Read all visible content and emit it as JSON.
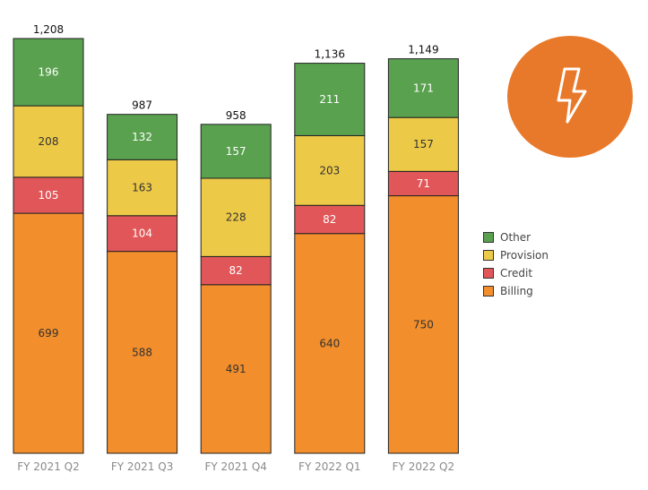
{
  "chart_data": {
    "type": "bar",
    "stacked": true,
    "categories": [
      "FY 2021 Q2",
      "FY 2021 Q3",
      "FY 2021 Q4",
      "FY 2022 Q1",
      "FY 2022 Q2"
    ],
    "series": [
      {
        "name": "Billing",
        "values": [
          699,
          588,
          491,
          640,
          750
        ],
        "color": "#f28e2b",
        "label_color": "#333333"
      },
      {
        "name": "Credit",
        "values": [
          105,
          104,
          82,
          82,
          71
        ],
        "color": "#e15759",
        "label_color": "#ffffff"
      },
      {
        "name": "Provision",
        "values": [
          208,
          163,
          228,
          203,
          157
        ],
        "color": "#edc948",
        "label_color": "#333333"
      },
      {
        "name": "Other",
        "values": [
          196,
          132,
          157,
          211,
          171
        ],
        "color": "#59a14f",
        "label_color": "#ffffff"
      }
    ],
    "totals": [
      "1,208",
      "987",
      "958",
      "1,136",
      "1,149"
    ],
    "legend_order": [
      "Other",
      "Provision",
      "Credit",
      "Billing"
    ],
    "legend_position": "right",
    "ylim": [
      0,
      1208
    ],
    "grid": false,
    "title": "",
    "xlabel": "",
    "ylabel": ""
  },
  "badge": {
    "icon": "lightning-bolt-icon",
    "color": "#e8792a"
  }
}
